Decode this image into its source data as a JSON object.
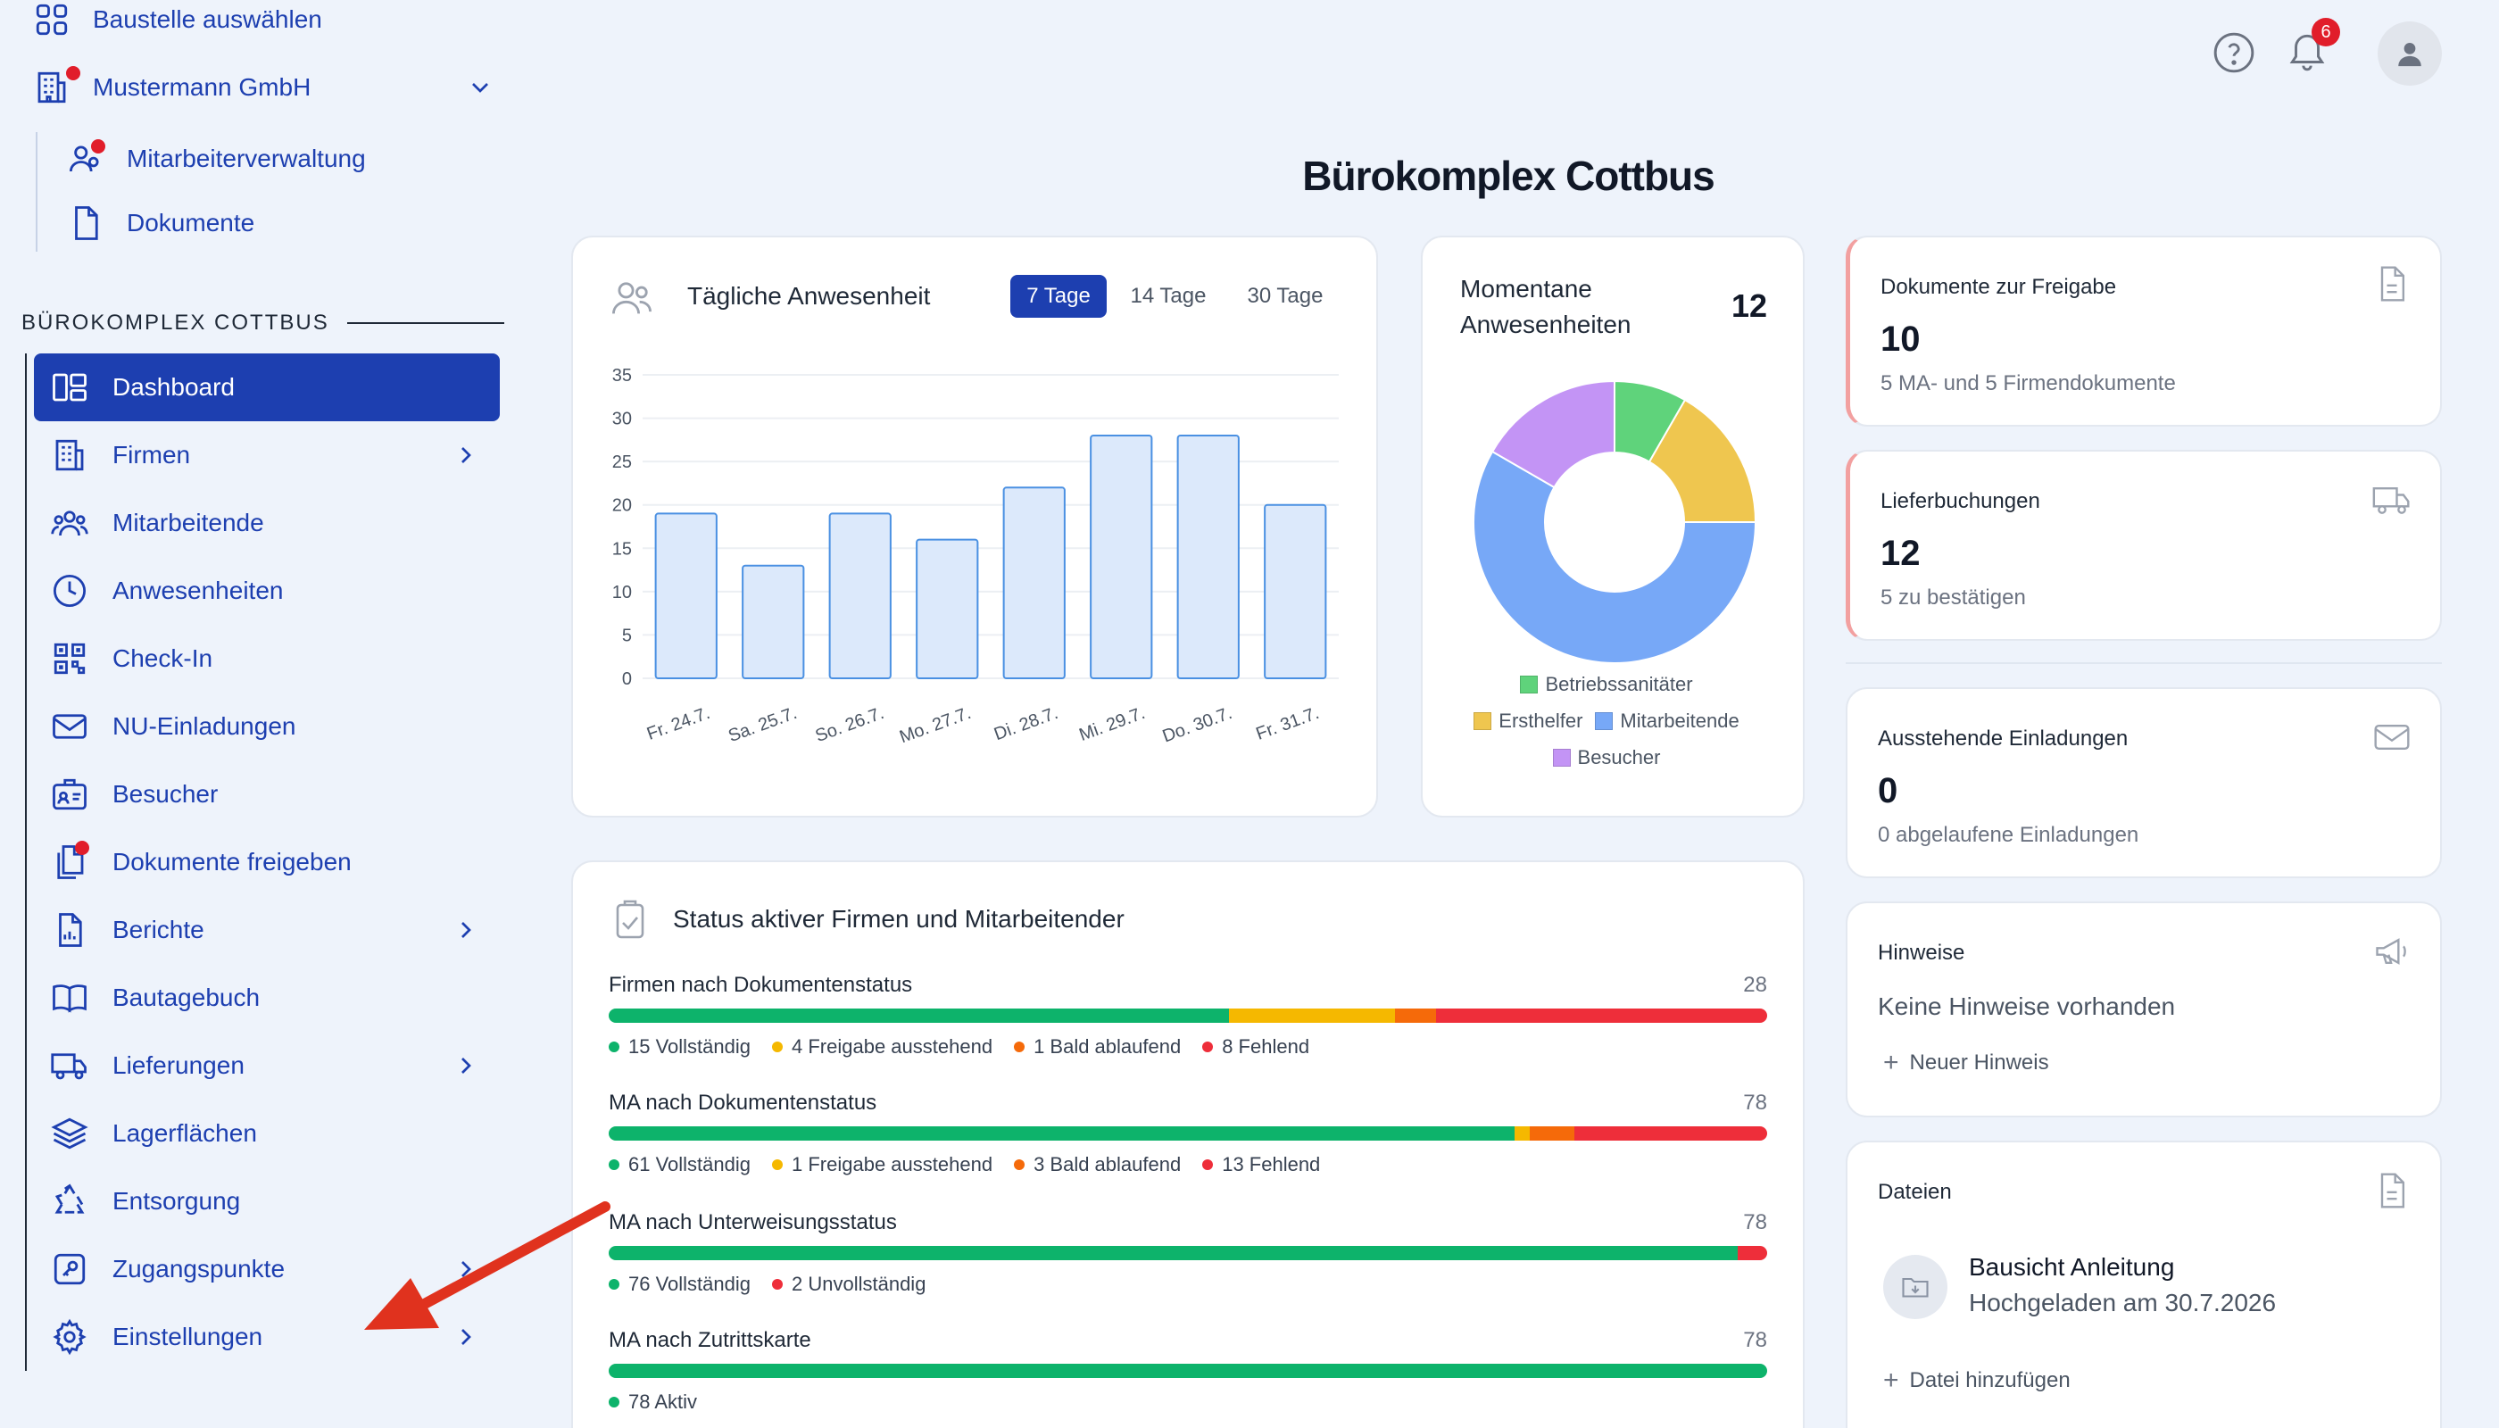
{
  "sidebar": {
    "select_site": "Baustelle auswählen",
    "company": "Mustermann GmbH",
    "company_links": [
      "Mitarbeiterverwaltung",
      "Dokumente"
    ],
    "section_title": "BÜROKOMPLEX COTTBUS",
    "items": [
      {
        "label": "Dashboard",
        "icon": "dashboard-icon"
      },
      {
        "label": "Firmen",
        "icon": "building-icon"
      },
      {
        "label": "Mitarbeitende",
        "icon": "users-icon"
      },
      {
        "label": "Anwesenheiten",
        "icon": "clock-icon"
      },
      {
        "label": "Check-In",
        "icon": "qr-icon"
      },
      {
        "label": "NU-Einladungen",
        "icon": "mail-icon"
      },
      {
        "label": "Besucher",
        "icon": "badge-icon"
      },
      {
        "label": "Dokumente freigeben",
        "icon": "documents-icon"
      },
      {
        "label": "Berichte",
        "icon": "report-icon"
      },
      {
        "label": "Bautagebuch",
        "icon": "book-icon"
      },
      {
        "label": "Lieferungen",
        "icon": "truck-icon"
      },
      {
        "label": "Lagerflächen",
        "icon": "layers-icon"
      },
      {
        "label": "Entsorgung",
        "icon": "recycle-icon"
      },
      {
        "label": "Zugangspunkte",
        "icon": "key-icon"
      },
      {
        "label": "Einstellungen",
        "icon": "gear-icon"
      }
    ]
  },
  "header": {
    "notification_count": "6",
    "page_title": "Bürokomplex Cottbus"
  },
  "attendance": {
    "title": "Tägliche Anwesenheit",
    "tabs": [
      "7 Tage",
      "14 Tage",
      "30 Tage"
    ]
  },
  "chart_data": [
    {
      "type": "bar",
      "categories": [
        "Fr. 24.7.",
        "Sa. 25.7.",
        "So. 26.7.",
        "Mo. 27.7.",
        "Di. 28.7.",
        "Mi. 29.7.",
        "Do. 30.7.",
        "Fr. 31.7."
      ],
      "values": [
        19,
        13,
        19,
        16,
        22,
        28,
        28,
        20
      ],
      "title": "Tägliche Anwesenheit",
      "ylim": [
        0,
        35
      ],
      "yticks": [
        0,
        5,
        10,
        15,
        20,
        25,
        30,
        35
      ],
      "grid": true,
      "color": "#dce9fb",
      "stroke": "#4a90e2"
    },
    {
      "type": "pie",
      "title": "Momentane Anwesenheiten",
      "total": "12",
      "labels": [
        "Betriebssanitäter",
        "Ersthelfer",
        "Mitarbeitende",
        "Besucher"
      ],
      "values": [
        1,
        2,
        7,
        2
      ],
      "colors": [
        "#5fd37b",
        "#efc64f",
        "#77a8f7",
        "#c394f5"
      ],
      "legend": "bottom"
    }
  ],
  "status": {
    "title": "Status aktiver Firmen und Mitarbeitender",
    "groups": [
      {
        "label": "Firmen nach Dokumentenstatus",
        "total": "28",
        "segments": [
          {
            "value": 15,
            "label": "15 Vollständig",
            "color": "#0db36b"
          },
          {
            "value": 4,
            "label": "4 Freigabe ausstehend",
            "color": "#f5b800"
          },
          {
            "value": 1,
            "label": "1 Bald ablaufend",
            "color": "#f56a0a"
          },
          {
            "value": 8,
            "label": "8 Fehlend",
            "color": "#ee2e3a"
          }
        ]
      },
      {
        "label": "MA nach Dokumentenstatus",
        "total": "78",
        "segments": [
          {
            "value": 61,
            "label": "61 Vollständig",
            "color": "#0db36b"
          },
          {
            "value": 1,
            "label": "1 Freigabe ausstehend",
            "color": "#f5b800"
          },
          {
            "value": 3,
            "label": "3 Bald ablaufend",
            "color": "#f56a0a"
          },
          {
            "value": 13,
            "label": "13 Fehlend",
            "color": "#ee2e3a"
          }
        ]
      },
      {
        "label": "MA nach Unterweisungsstatus",
        "total": "78",
        "segments": [
          {
            "value": 76,
            "label": "76 Vollständig",
            "color": "#0db36b"
          },
          {
            "value": 2,
            "label": "2 Unvollständig",
            "color": "#ee2e3a"
          }
        ]
      },
      {
        "label": "MA nach Zutrittskarte",
        "total": "78",
        "segments": [
          {
            "value": 78,
            "label": "78 Aktiv",
            "color": "#0db36b"
          }
        ]
      }
    ]
  },
  "right_cards": {
    "docs": {
      "title": "Dokumente zur Freigabe",
      "count": "10",
      "sub": "5 MA- und 5 Firmendokumente"
    },
    "deliveries": {
      "title": "Lieferbuchungen",
      "count": "12",
      "sub": "5 zu bestätigen"
    },
    "invites": {
      "title": "Ausstehende Einladungen",
      "count": "0",
      "sub": "0 abgelaufene Einladungen"
    },
    "notes": {
      "title": "Hinweise",
      "empty": "Keine Hinweise vorhanden",
      "add": "Neuer Hinweis"
    },
    "files": {
      "title": "Dateien",
      "file_name": "Bausicht Anleitung",
      "file_meta": "Hochgeladen am 30.7.2026",
      "add": "Datei hinzufügen"
    }
  },
  "colors": {
    "accent": "#1d3fb0",
    "annotation_arrow": "#e0321e"
  }
}
